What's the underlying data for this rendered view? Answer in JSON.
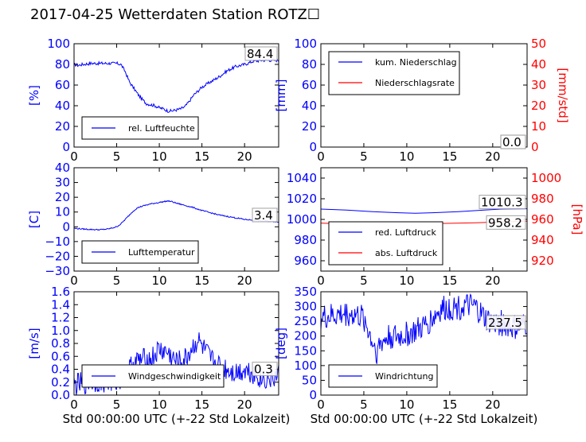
{
  "title": "2017-04-25 Wetterdaten Station ROTZ☐",
  "colors": {
    "left": "#0000ff",
    "right": "#ff0000",
    "light": "#8080ff"
  },
  "chart_data": [
    {
      "id": "humidity",
      "type": "line",
      "xlabel": "",
      "ylabel": "[%]",
      "xlim": [
        0,
        24
      ],
      "ylim": [
        0,
        100
      ],
      "xticks": [
        "0",
        "5",
        "10",
        "15",
        "20"
      ],
      "yticks": [
        "0",
        "20",
        "40",
        "60",
        "80",
        "100"
      ],
      "annotation": "84.4",
      "grid": false,
      "legend_position": "lower-center",
      "series": [
        {
          "name": "rel. Luftfeuchte",
          "axis": "left",
          "color": "#0000ff",
          "noise": 1.5,
          "x": [
            0,
            0.5,
            1,
            2,
            3,
            4,
            5,
            5.5,
            6,
            6.5,
            7,
            7.5,
            8,
            8.5,
            9,
            9.5,
            10,
            10.5,
            11,
            11.5,
            12,
            12.5,
            13,
            13.5,
            14,
            15,
            16,
            17,
            18,
            19,
            20,
            21,
            22,
            23,
            24
          ],
          "y": [
            80,
            79,
            80,
            81,
            81,
            81,
            81,
            80,
            73,
            63,
            57,
            51,
            46,
            42,
            41,
            40,
            38,
            37,
            35,
            35,
            36,
            37,
            39,
            44,
            50,
            58,
            63,
            68,
            74,
            78,
            80,
            83,
            84,
            84,
            84
          ]
        }
      ]
    },
    {
      "id": "precip",
      "type": "line",
      "xlabel": "",
      "ylabel": "[mm]",
      "y2label": "[mm/std]",
      "xlim": [
        0,
        24
      ],
      "ylim": [
        0,
        100
      ],
      "y2lim": [
        0,
        50
      ],
      "xticks": [
        "0",
        "5",
        "10",
        "15",
        "20"
      ],
      "yticks": [
        "0",
        "20",
        "40",
        "60",
        "80",
        "100"
      ],
      "y2ticks": [
        "0",
        "10",
        "20",
        "30",
        "40",
        "50"
      ],
      "annotation": "0.0",
      "annotation2": "0.0",
      "grid": false,
      "legend_position": "upper-left",
      "series": [
        {
          "name": "kum. Niederschlag",
          "axis": "left",
          "color": "#0000ff",
          "noise": 0,
          "x": [
            0,
            24
          ],
          "y": [
            0,
            0
          ]
        },
        {
          "name": "Niederschlagsrate",
          "axis": "right",
          "color": "#ff0000",
          "noise": 0,
          "x": [
            0,
            24
          ],
          "y": [
            0,
            0
          ]
        }
      ]
    },
    {
      "id": "temperature",
      "type": "line",
      "xlabel": "",
      "ylabel": "[C]",
      "xlim": [
        0,
        24
      ],
      "ylim": [
        -30,
        40
      ],
      "xticks": [
        "0",
        "5",
        "10",
        "15",
        "20"
      ],
      "yticks": [
        "−30",
        "−20",
        "−10",
        "0",
        "10",
        "20",
        "30",
        "40"
      ],
      "annotation": "3.4",
      "grid": false,
      "legend_position": "lower-center",
      "series": [
        {
          "name": "Lufttemperatur",
          "axis": "left",
          "color": "#0000ff",
          "noise": 0.4,
          "x": [
            0,
            1,
            2,
            3,
            4,
            5,
            5.5,
            6,
            6.5,
            7,
            7.5,
            8,
            9,
            10,
            10.5,
            11,
            11.5,
            12,
            13,
            14,
            15,
            16,
            17,
            18,
            19,
            20,
            21,
            22,
            23,
            24
          ],
          "y": [
            -1,
            -1.5,
            -1.8,
            -2,
            -1.5,
            0,
            2,
            5,
            8,
            11,
            13,
            14,
            15.5,
            16.5,
            17,
            17.5,
            17,
            16,
            14.5,
            13,
            11,
            9.5,
            8,
            7,
            6,
            5,
            4.5,
            4,
            3.7,
            3.4
          ]
        }
      ]
    },
    {
      "id": "pressure",
      "type": "line",
      "xlabel": "",
      "ylabel": "",
      "y2label": "[hPa]",
      "xlim": [
        0,
        24
      ],
      "ylim": [
        950,
        1050
      ],
      "y2lim": [
        910,
        1010
      ],
      "xticks": [
        "0",
        "5",
        "10",
        "15",
        "20"
      ],
      "yticks": [
        "960",
        "980",
        "1000",
        "1020",
        "1040"
      ],
      "y2ticks": [
        "920",
        "940",
        "960",
        "980",
        "1000"
      ],
      "annotation": "1010.3",
      "annotation2": "958.2",
      "grid": false,
      "legend_position": "lower-left",
      "series": [
        {
          "name": "red. Luftdruck",
          "axis": "left",
          "color": "#0000ff",
          "noise": 0,
          "x": [
            0,
            3,
            6,
            9,
            11,
            13,
            16,
            19,
            21,
            24
          ],
          "y": [
            1010,
            1009,
            1007.5,
            1006.5,
            1006,
            1006.5,
            1007.5,
            1009,
            1010,
            1010.3
          ]
        },
        {
          "name": "abs. Luftdruck",
          "axis": "right",
          "color": "#ff0000",
          "noise": 0,
          "x": [
            0,
            3,
            6,
            9,
            12,
            15,
            18,
            20,
            22,
            24
          ],
          "y": [
            956.5,
            955.5,
            955.5,
            955.5,
            955.8,
            956.2,
            956.8,
            957.3,
            957.8,
            958.2
          ]
        }
      ]
    },
    {
      "id": "wind-speed",
      "type": "line",
      "xlabel": "Std 00:00:00 UTC (+-22 Std Lokalzeit)",
      "ylabel": "[m/s]",
      "xlim": [
        0,
        24
      ],
      "ylim": [
        0,
        1.6
      ],
      "xticks": [
        "0",
        "5",
        "10",
        "15",
        "20"
      ],
      "yticks": [
        "0.0",
        "0.2",
        "0.4",
        "0.6",
        "0.8",
        "1.0",
        "1.2",
        "1.4",
        "1.6"
      ],
      "annotation": "0.3",
      "grid": false,
      "legend_position": "lower-center",
      "series": [
        {
          "name": "Windgeschwindigkeit",
          "axis": "left",
          "color": "#0000ff",
          "noise": 0.18,
          "x": [
            0,
            1,
            2,
            3,
            4,
            5,
            6,
            6.5,
            7,
            8,
            9,
            10,
            11,
            12,
            13,
            14,
            14.5,
            15,
            16,
            17,
            18,
            19,
            20,
            21,
            22,
            23,
            24
          ],
          "y": [
            0.15,
            0.18,
            0.2,
            0.22,
            0.2,
            0.22,
            0.3,
            0.4,
            0.5,
            0.55,
            0.55,
            0.7,
            0.65,
            0.5,
            0.55,
            0.75,
            0.85,
            0.75,
            0.55,
            0.45,
            0.4,
            0.35,
            0.4,
            0.35,
            0.25,
            0.25,
            0.3
          ]
        }
      ]
    },
    {
      "id": "wind-direction",
      "type": "line",
      "xlabel": "Std 00:00:00 UTC (+-22 Std Lokalzeit)",
      "ylabel": "[deg]",
      "xlim": [
        0,
        24
      ],
      "ylim": [
        0,
        350
      ],
      "xticks": [
        "0",
        "5",
        "10",
        "15",
        "20"
      ],
      "yticks": [
        "0",
        "50",
        "100",
        "150",
        "200",
        "250",
        "300",
        "350"
      ],
      "annotation": "237.5",
      "grid": false,
      "legend_position": "lower-left",
      "series": [
        {
          "name": "Windrichtung",
          "axis": "left",
          "color": "#0000ff",
          "noise": 45,
          "x": [
            0,
            1,
            2,
            3,
            4,
            5,
            5.5,
            6,
            6.5,
            7,
            8,
            9,
            10,
            11,
            12,
            13,
            14,
            15,
            16,
            17,
            18,
            19,
            20,
            21,
            22,
            23,
            24
          ],
          "y": [
            260,
            265,
            270,
            275,
            270,
            260,
            220,
            180,
            150,
            175,
            200,
            195,
            205,
            215,
            230,
            260,
            290,
            295,
            300,
            300,
            295,
            260,
            240,
            245,
            230,
            225,
            240
          ]
        }
      ]
    }
  ]
}
